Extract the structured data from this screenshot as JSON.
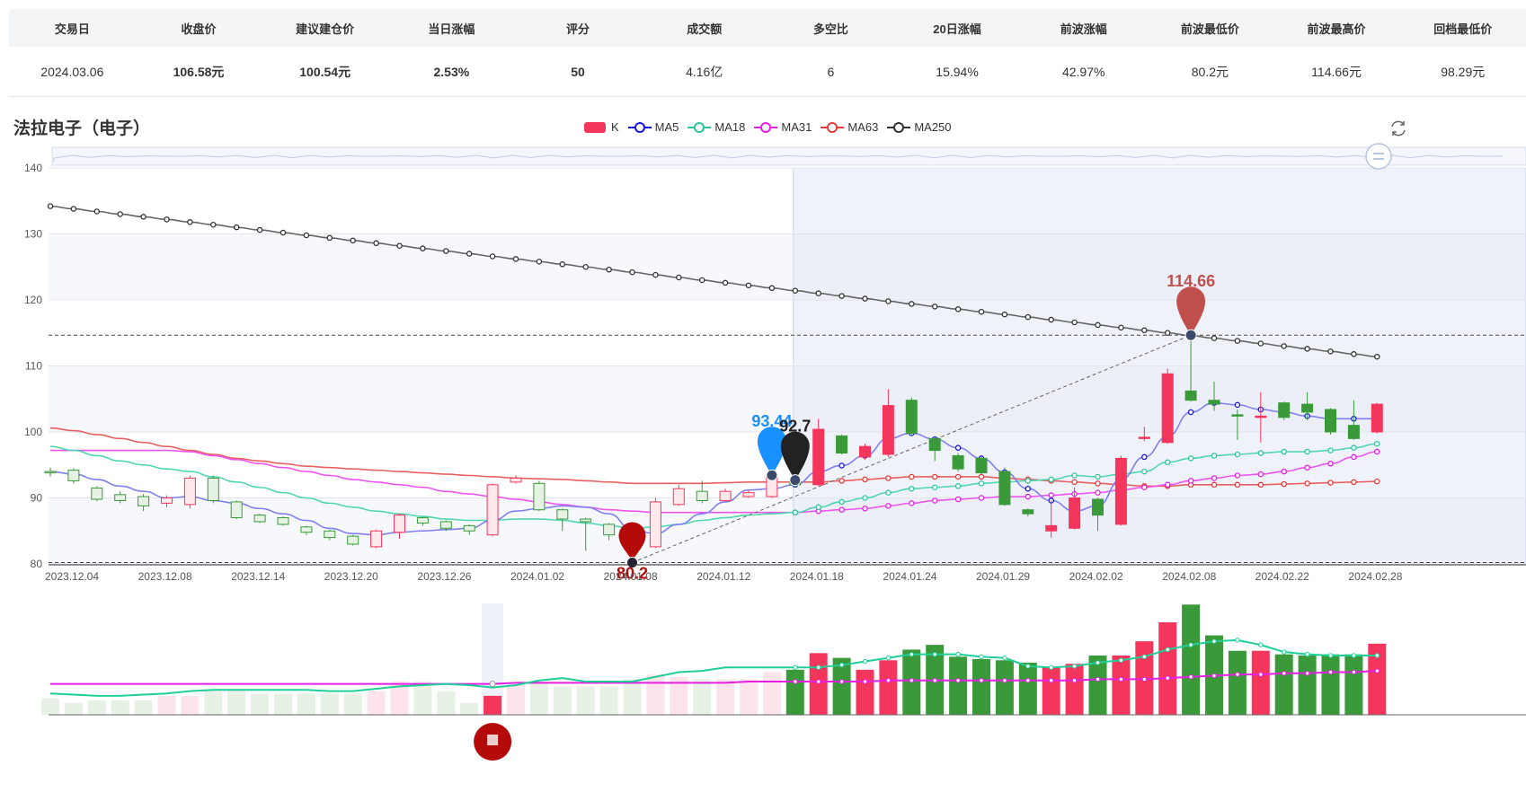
{
  "stats": {
    "headers": [
      "交易日",
      "收盘价",
      "建议建仓价",
      "当日涨幅",
      "评分",
      "成交额",
      "多空比",
      "20日涨幅",
      "前波涨幅",
      "前波最低价",
      "前波最高价",
      "回档最低价"
    ],
    "values": [
      "2024.03.06",
      "106.58元",
      "100.54元",
      "2.53%",
      "50",
      "4.16亿",
      "6",
      "15.94%",
      "42.97%",
      "80.2元",
      "114.66元",
      "98.29元"
    ]
  },
  "title": "法拉电子（电子）",
  "legend": [
    {
      "name": "K",
      "color": "#f5365c"
    },
    {
      "name": "MA5",
      "color": "#1515e0"
    },
    {
      "name": "MA18",
      "color": "#2bc79a"
    },
    {
      "name": "MA31",
      "color": "#e51ee5"
    },
    {
      "name": "MA63",
      "color": "#e43b3b"
    },
    {
      "name": "MA250",
      "color": "#333333"
    }
  ],
  "colors": {
    "up": "#f5365c",
    "down": "#3a9a3a",
    "ma5": "#8080ee",
    "ma18": "#52d6b0",
    "ma31": "#ee55ee",
    "ma63": "#e86060",
    "ma250": "#666666",
    "volma_a": "#1fcf99",
    "volma_b": "#e51ee5"
  },
  "chart_data": {
    "type": "candlestick",
    "ylim": [
      80,
      140
    ],
    "yticks": [
      80,
      90,
      100,
      110,
      120,
      130,
      140
    ],
    "xticks": [
      {
        "i": 0,
        "label": "2023.12.04"
      },
      {
        "i": 4,
        "label": "2023.12.08"
      },
      {
        "i": 8,
        "label": "2023.12.14"
      },
      {
        "i": 12,
        "label": "2023.12.20"
      },
      {
        "i": 16,
        "label": "2023.12.26"
      },
      {
        "i": 20,
        "label": "2024.01.02"
      },
      {
        "i": 24,
        "label": "2024.01.08"
      },
      {
        "i": 28,
        "label": "2024.01.12"
      },
      {
        "i": 32,
        "label": "2024.01.18"
      },
      {
        "i": 36,
        "label": "2024.01.24"
      },
      {
        "i": 40,
        "label": "2024.01.29"
      },
      {
        "i": 44,
        "label": "2024.02.02"
      },
      {
        "i": 48,
        "label": "2024.02.08"
      },
      {
        "i": 52,
        "label": "2024.02.22"
      },
      {
        "i": 56,
        "label": "2024.02.28"
      }
    ],
    "candles": [
      [
        94.0,
        93.8,
        94.6,
        93.2
      ],
      [
        94.2,
        92.6,
        94.5,
        92.2
      ],
      [
        91.5,
        89.8,
        91.8,
        89.5
      ],
      [
        90.5,
        89.6,
        91.0,
        89.2
      ],
      [
        90.2,
        88.8,
        90.6,
        88.0
      ],
      [
        89.2,
        90.0,
        90.4,
        88.6
      ],
      [
        89.0,
        93.0,
        93.4,
        88.4
      ],
      [
        93.0,
        89.6,
        93.4,
        89.2
      ],
      [
        89.4,
        87.0,
        89.6,
        86.8
      ],
      [
        87.4,
        86.4,
        87.6,
        86.2
      ],
      [
        87.0,
        86.0,
        87.2,
        85.8
      ],
      [
        85.6,
        84.8,
        85.8,
        84.4
      ],
      [
        85.0,
        84.0,
        85.2,
        83.6
      ],
      [
        84.2,
        83.0,
        84.4,
        82.8
      ],
      [
        82.6,
        85.0,
        85.2,
        82.4
      ],
      [
        84.8,
        87.4,
        87.6,
        83.8
      ],
      [
        87.0,
        86.2,
        87.2,
        85.8
      ],
      [
        86.4,
        85.4,
        86.6,
        85.0
      ],
      [
        85.8,
        85.0,
        86.0,
        84.4
      ],
      [
        84.4,
        92.0,
        92.2,
        84.2
      ],
      [
        92.4,
        93.0,
        93.4,
        92.2
      ],
      [
        92.2,
        88.2,
        92.6,
        88.0
      ],
      [
        88.2,
        86.8,
        88.4,
        85.0
      ],
      [
        86.8,
        86.4,
        87.0,
        82.0
      ],
      [
        86.0,
        84.4,
        86.2,
        83.6
      ],
      [
        84.2,
        81.8,
        84.4,
        80.2
      ],
      [
        82.6,
        89.4,
        90.0,
        82.4
      ],
      [
        89.0,
        91.4,
        92.0,
        88.8
      ],
      [
        91.0,
        89.6,
        92.6,
        89.2
      ],
      [
        89.6,
        91.0,
        91.4,
        89.4
      ],
      [
        90.2,
        90.8,
        91.2,
        90.0
      ],
      [
        90.2,
        93.2,
        93.4,
        90.0
      ],
      [
        92.6,
        92.0,
        92.8,
        91.6
      ],
      [
        92.0,
        100.4,
        102.0,
        91.8
      ],
      [
        99.4,
        96.8,
        99.6,
        96.6
      ],
      [
        96.2,
        97.8,
        98.2,
        95.8
      ],
      [
        96.6,
        104.0,
        106.5,
        96.2
      ],
      [
        104.8,
        99.8,
        105.2,
        99.4
      ],
      [
        99.0,
        97.2,
        99.2,
        95.6
      ],
      [
        96.4,
        94.4,
        96.8,
        94.0
      ],
      [
        96.0,
        93.8,
        96.2,
        93.6
      ],
      [
        94.0,
        89.0,
        94.6,
        88.8
      ],
      [
        88.2,
        87.6,
        88.4,
        87.2
      ],
      [
        85.0,
        85.8,
        89.6,
        84.0
      ],
      [
        85.4,
        90.0,
        91.6,
        85.2
      ],
      [
        89.8,
        87.4,
        90.0,
        85.0
      ],
      [
        86.0,
        96.0,
        96.4,
        85.8
      ],
      [
        99.2,
        99.2,
        100.8,
        98.6
      ],
      [
        98.4,
        108.8,
        109.6,
        98.2
      ],
      [
        106.2,
        104.8,
        114.66,
        104.6
      ],
      [
        104.8,
        104.2,
        107.6,
        103.2
      ],
      [
        102.6,
        102.4,
        103.4,
        98.8
      ],
      [
        102.4,
        102.4,
        106.0,
        98.4
      ],
      [
        104.4,
        102.2,
        104.6,
        101.8
      ],
      [
        104.2,
        103.0,
        106.0,
        101.8
      ],
      [
        103.4,
        100.0,
        103.6,
        99.6
      ],
      [
        101.0,
        99.0,
        104.8,
        98.8
      ],
      [
        100.0,
        104.2,
        104.4,
        99.8
      ]
    ],
    "ma5": [
      94.0,
      93.6,
      92.8,
      91.8,
      91.0,
      90.0,
      90.2,
      89.6,
      89.2,
      88.4,
      87.6,
      86.6,
      85.4,
      84.6,
      84.4,
      84.8,
      85.0,
      85.2,
      85.4,
      86.6,
      88.0,
      88.4,
      88.8,
      88.6,
      87.6,
      85.2,
      84.6,
      86.0,
      87.6,
      89.4,
      91.2,
      91.4,
      92.0,
      94.0,
      94.9,
      96.4,
      99.0,
      99.8,
      98.9,
      97.6,
      96.0,
      93.9,
      91.4,
      89.6,
      88.0,
      88.8,
      92.8,
      96.2,
      99.3,
      103.0,
      104.4,
      104.1,
      103.4,
      103.0,
      102.4,
      102.0,
      102.0,
      102.0
    ],
    "ma18": [
      97.8,
      97.2,
      96.4,
      95.6,
      95.0,
      94.4,
      94.0,
      93.2,
      92.4,
      91.6,
      90.8,
      90.0,
      89.2,
      88.6,
      88.0,
      87.6,
      87.2,
      86.8,
      86.6,
      86.6,
      86.8,
      86.8,
      86.6,
      86.2,
      85.8,
      85.4,
      85.6,
      86.0,
      86.6,
      87.0,
      87.4,
      87.6,
      87.8,
      88.6,
      89.4,
      90.0,
      90.8,
      91.4,
      91.6,
      91.8,
      92.2,
      92.4,
      92.6,
      92.8,
      93.4,
      93.2,
      93.6,
      94.0,
      95.4,
      96.0,
      96.4,
      96.6,
      96.8,
      97.0,
      97.0,
      97.2,
      97.6,
      98.2
    ],
    "ma31": [
      97.2,
      97.2,
      97.2,
      97.2,
      97.2,
      97.2,
      97.0,
      96.4,
      95.8,
      95.2,
      94.6,
      94.0,
      93.4,
      92.8,
      92.4,
      92.0,
      91.6,
      91.0,
      90.6,
      90.2,
      89.8,
      89.4,
      89.0,
      88.6,
      88.2,
      88.0,
      87.8,
      87.8,
      87.8,
      87.8,
      87.8,
      87.8,
      87.8,
      88.0,
      88.2,
      88.4,
      88.8,
      89.2,
      89.6,
      89.8,
      90.0,
      90.2,
      90.2,
      90.4,
      90.6,
      90.8,
      91.2,
      91.6,
      92.0,
      92.6,
      93.0,
      93.4,
      93.6,
      94.0,
      94.6,
      95.2,
      96.2,
      97.0
    ],
    "ma63": [
      100.6,
      100.2,
      99.6,
      99.0,
      98.4,
      97.8,
      97.2,
      96.6,
      96.0,
      95.6,
      95.2,
      94.8,
      94.6,
      94.4,
      94.2,
      94.0,
      93.8,
      93.6,
      93.4,
      93.2,
      93.0,
      92.9,
      92.8,
      92.6,
      92.4,
      92.2,
      92.2,
      92.2,
      92.2,
      92.3,
      92.4,
      92.4,
      92.4,
      92.4,
      92.6,
      92.8,
      93.0,
      93.2,
      93.2,
      93.2,
      93.2,
      93.0,
      92.8,
      92.6,
      92.4,
      92.2,
      92.0,
      91.8,
      91.8,
      92.0,
      92.0,
      92.0,
      92.0,
      92.1,
      92.2,
      92.3,
      92.4,
      92.5
    ],
    "ma250": [
      134.2,
      133.8,
      133.4,
      133.0,
      132.6,
      132.2,
      131.8,
      131.4,
      131.0,
      130.6,
      130.2,
      129.8,
      129.4,
      129.0,
      128.6,
      128.2,
      127.8,
      127.4,
      127.0,
      126.6,
      126.2,
      125.8,
      125.4,
      125.0,
      124.6,
      124.2,
      123.8,
      123.4,
      123.0,
      122.6,
      122.2,
      121.8,
      121.4,
      121.0,
      120.6,
      120.2,
      119.8,
      119.4,
      119.0,
      118.6,
      118.2,
      117.8,
      117.4,
      117.0,
      116.6,
      116.2,
      115.8,
      115.4,
      115.0,
      114.6,
      114.2,
      113.8,
      113.4,
      113.0,
      112.6,
      112.2,
      111.8,
      111.4
    ],
    "volumes": [
      14,
      10,
      12,
      12,
      12,
      16,
      16,
      20,
      22,
      18,
      18,
      18,
      18,
      18,
      20,
      28,
      28,
      20,
      10,
      16,
      26,
      28,
      24,
      24,
      24,
      30,
      34,
      32,
      30,
      30,
      30,
      36,
      38,
      52,
      48,
      38,
      46,
      55,
      59,
      49,
      47,
      46,
      44,
      40,
      43,
      50,
      50,
      62,
      78,
      93,
      67,
      54,
      54,
      51,
      50,
      51,
      51,
      60
    ],
    "volume_ma_a": [
      18,
      17,
      16,
      16,
      17,
      18,
      20,
      21,
      21,
      21,
      21,
      21,
      20,
      20,
      22,
      24,
      25,
      26,
      25,
      23,
      25,
      29,
      31,
      28,
      28,
      28,
      32,
      36,
      37,
      40,
      40,
      40,
      40,
      40,
      42,
      45,
      48,
      51,
      51,
      51,
      49,
      48,
      41,
      40,
      41,
      44,
      46,
      49,
      55,
      59,
      62,
      63,
      59,
      53,
      51,
      50,
      50,
      50
    ],
    "volume_ma_b": [
      26,
      26,
      26,
      26,
      26,
      26,
      26,
      26,
      26,
      26,
      26,
      26,
      26,
      26,
      26,
      26,
      26,
      26,
      26,
      26,
      27,
      27,
      27,
      27,
      27,
      27,
      27,
      27,
      27,
      27,
      28,
      28,
      28,
      28,
      28,
      28,
      29,
      29,
      29,
      29,
      29,
      29,
      29,
      29,
      29,
      30,
      30,
      30,
      31,
      32,
      33,
      34,
      34,
      35,
      35,
      36,
      36,
      37
    ],
    "annotations": [
      {
        "label": "93.44",
        "i": 31,
        "value": 93.44,
        "color": "#1890ff"
      },
      {
        "label": "92.7",
        "i": 32,
        "value": 92.7,
        "color": "#222222"
      },
      {
        "label": "114.66",
        "i": 49,
        "value": 114.66,
        "color": "#c0504d"
      },
      {
        "label": "80.2",
        "i": 25,
        "value": 80.2,
        "color": "#b50a0a"
      }
    ],
    "hlines": [
      114.66,
      80.2
    ]
  }
}
